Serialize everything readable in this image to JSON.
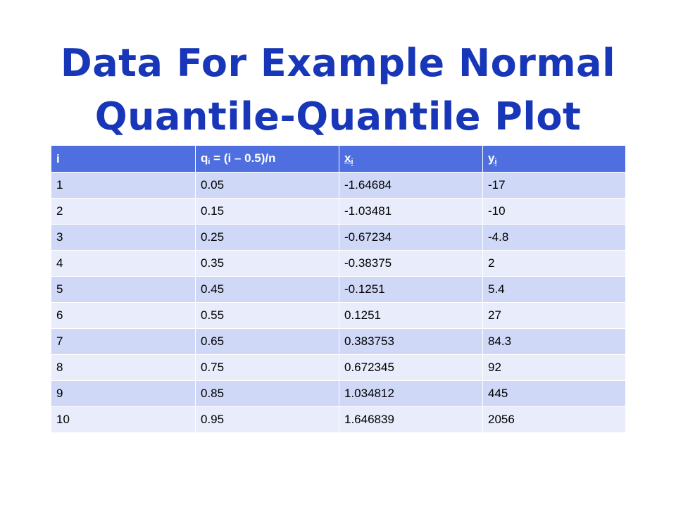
{
  "title": {
    "line1": "Data For Example Normal",
    "line2": "Quantile-Quantile Plot"
  },
  "table": {
    "headers": {
      "col1": "i",
      "col2_main": "q",
      "col2_sub": "i",
      "col2_rest": " = (i – 0.5)/n",
      "col3_main": "x",
      "col3_sub": "i",
      "col4_main": "y",
      "col4_sub": "i"
    },
    "rows": [
      [
        "1",
        "0.05",
        "-1.64684",
        "-17"
      ],
      [
        "2",
        "0.15",
        "-1.03481",
        "-10"
      ],
      [
        "3",
        "0.25",
        "-0.67234",
        "-4.8"
      ],
      [
        "4",
        "0.35",
        "-0.38375",
        "2"
      ],
      [
        "5",
        "0.45",
        "-0.1251",
        "5.4"
      ],
      [
        "6",
        "0.55",
        "0.1251",
        "27"
      ],
      [
        "7",
        "0.65",
        "0.383753",
        "84.3"
      ],
      [
        "8",
        "0.75",
        "0.672345",
        "92"
      ],
      [
        "9",
        "0.85",
        "1.034812",
        "445"
      ],
      [
        "10",
        "0.95",
        "1.646839",
        "2056"
      ]
    ]
  },
  "colors": {
    "title": "#1836b8",
    "header_bg": "#4f6fe0",
    "row_odd_bg": "#cfd8f7",
    "row_even_bg": "#e8ecfb"
  }
}
